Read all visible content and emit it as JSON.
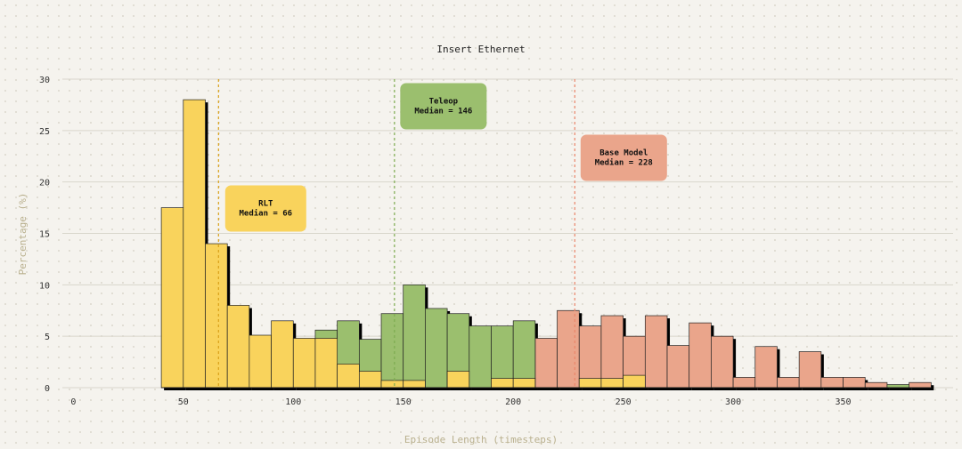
{
  "chart_data": {
    "type": "histogram",
    "title": "Insert Ethernet",
    "xlabel": "Episode Length (timesteps)",
    "ylabel": "Percentage (%)",
    "xlim": [
      -5,
      400
    ],
    "ylim": [
      0,
      30
    ],
    "xticks": [
      "0",
      "50",
      "100",
      "150",
      "200",
      "250",
      "300",
      "350"
    ],
    "yticks": [
      "0",
      "5",
      "10",
      "15",
      "20",
      "25",
      "30"
    ],
    "bin_width": 10,
    "series": [
      {
        "name": "Base Model",
        "color": "#eaa58b",
        "median": 228,
        "bins": [
          [
            180,
            5.0
          ],
          [
            190,
            2.5
          ],
          [
            200,
            5.1
          ],
          [
            210,
            4.8
          ],
          [
            220,
            7.5
          ],
          [
            230,
            6.0
          ],
          [
            240,
            7.0
          ],
          [
            250,
            5.0
          ],
          [
            260,
            7.0
          ],
          [
            270,
            4.1
          ],
          [
            280,
            6.3
          ],
          [
            290,
            5.0
          ],
          [
            300,
            1.0
          ],
          [
            310,
            4.0
          ],
          [
            320,
            1.0
          ],
          [
            330,
            3.5
          ],
          [
            340,
            1.0
          ],
          [
            350,
            1.0
          ],
          [
            360,
            0.5
          ],
          [
            380,
            0.5
          ]
        ]
      },
      {
        "name": "Teleop",
        "color": "#9bbf6e",
        "median": 146,
        "bins": [
          [
            110,
            5.6
          ],
          [
            120,
            6.5
          ],
          [
            130,
            4.7
          ],
          [
            140,
            7.2
          ],
          [
            150,
            10.0
          ],
          [
            160,
            7.7
          ],
          [
            170,
            7.2
          ],
          [
            180,
            6.0
          ],
          [
            190,
            6.0
          ],
          [
            200,
            6.5
          ],
          [
            370,
            0.3
          ]
        ]
      },
      {
        "name": "RLT",
        "color": "#f9d35c",
        "median": 66,
        "bins": [
          [
            40,
            17.5
          ],
          [
            50,
            28.0
          ],
          [
            60,
            14.0
          ],
          [
            70,
            8.0
          ],
          [
            80,
            5.1
          ],
          [
            90,
            6.5
          ],
          [
            100,
            4.8
          ],
          [
            110,
            4.8
          ],
          [
            120,
            2.3
          ],
          [
            130,
            1.6
          ],
          [
            140,
            0.7
          ],
          [
            150,
            0.7
          ],
          [
            170,
            1.6
          ],
          [
            190,
            0.9
          ],
          [
            200,
            0.9
          ],
          [
            230,
            0.9
          ],
          [
            240,
            0.9
          ],
          [
            250,
            1.2
          ]
        ]
      }
    ],
    "annotations": [
      {
        "title": "RLT",
        "text": "Median = 66",
        "color": "#f9d35c",
        "line_color": "#d9a21b"
      },
      {
        "title": "Teleop",
        "text": "Median = 146",
        "color": "#9bbf6e",
        "line_color": "#7cab4f"
      },
      {
        "title": "Base Model",
        "text": "Median = 228",
        "color": "#eaa58b",
        "line_color": "#e9856a"
      }
    ]
  }
}
